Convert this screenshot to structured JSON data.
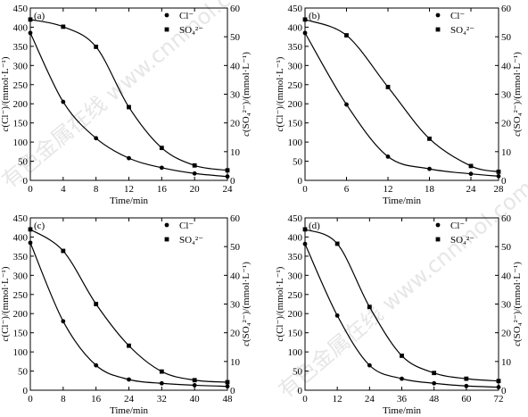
{
  "watermark_text": "有色金属在线 www.cnnmol.com",
  "chart_data": [
    {
      "type": "line",
      "panel_label": "(a)",
      "xlabel": "Time/min",
      "ylabel_left": "c(Cl⁻)/(mmol·L⁻¹)",
      "ylabel_right": "c(SO₄²⁻)/(mmol·L⁻¹)",
      "x_ticks": [
        0,
        4,
        8,
        12,
        16,
        20,
        24
      ],
      "xlim": [
        0,
        24
      ],
      "ylim_left": [
        0,
        450
      ],
      "ylim_right": [
        0,
        60
      ],
      "y_ticks_left": [
        0,
        50,
        100,
        150,
        200,
        250,
        300,
        350,
        400,
        450
      ],
      "y_ticks_right": [
        0,
        10,
        20,
        30,
        40,
        50,
        60
      ],
      "grid": false,
      "legend_position": "top-right",
      "series": [
        {
          "name": "Cl⁻",
          "axis": "left",
          "marker": "circle",
          "x": [
            0,
            4,
            8,
            12,
            16,
            20,
            24
          ],
          "y": [
            385,
            205,
            110,
            58,
            33,
            18,
            10
          ]
        },
        {
          "name": "SO₄²⁻",
          "axis": "right",
          "marker": "square",
          "x": [
            0,
            4,
            8,
            12,
            16,
            20,
            24
          ],
          "y": [
            56,
            53.5,
            46.5,
            25.5,
            11.3,
            5.2,
            3.5
          ]
        }
      ]
    },
    {
      "type": "line",
      "panel_label": "(b)",
      "xlabel": "Time/min",
      "ylabel_left": "c(Cl⁻)/(mmol·L⁻¹)",
      "ylabel_right": "c(SO₄²⁻)/(mmol·L⁻¹)",
      "x_ticks": [
        0,
        6,
        12,
        18,
        24,
        28
      ],
      "xlim": [
        0,
        28
      ],
      "ylim_left": [
        0,
        450
      ],
      "ylim_right": [
        0,
        60
      ],
      "y_ticks_left": [
        0,
        50,
        100,
        150,
        200,
        250,
        300,
        350,
        400,
        450
      ],
      "y_ticks_right": [
        0,
        10,
        20,
        30,
        40,
        50,
        60
      ],
      "grid": false,
      "legend_position": "top-right",
      "series": [
        {
          "name": "Cl⁻",
          "axis": "left",
          "marker": "circle",
          "x": [
            0,
            6,
            12,
            18,
            24,
            28
          ],
          "y": [
            385,
            198,
            62,
            30,
            17,
            11
          ]
        },
        {
          "name": "SO₄²⁻",
          "axis": "right",
          "marker": "square",
          "x": [
            0,
            6,
            12,
            18,
            24,
            28
          ],
          "y": [
            56,
            50.5,
            32.5,
            14.5,
            5,
            3
          ]
        }
      ]
    },
    {
      "type": "line",
      "panel_label": "(c)",
      "xlabel": "Time/min",
      "ylabel_left": "c(Cl⁻)/(mmol·L⁻¹)",
      "ylabel_right": "c(SO₄²⁻)/(mmol·L⁻¹)",
      "x_ticks": [
        0,
        8,
        16,
        24,
        32,
        40,
        48
      ],
      "xlim": [
        0,
        48
      ],
      "ylim_left": [
        0,
        450
      ],
      "ylim_right": [
        0,
        60
      ],
      "y_ticks_left": [
        0,
        50,
        100,
        150,
        200,
        250,
        300,
        350,
        400,
        450
      ],
      "y_ticks_right": [
        0,
        10,
        20,
        30,
        40,
        50,
        60
      ],
      "grid": false,
      "legend_position": "top-right",
      "series": [
        {
          "name": "Cl⁻",
          "axis": "left",
          "marker": "circle",
          "x": [
            0,
            8,
            16,
            24,
            32,
            40,
            48
          ],
          "y": [
            385,
            180,
            65,
            28,
            18,
            13,
            10
          ]
        },
        {
          "name": "SO₄²⁻",
          "axis": "right",
          "marker": "square",
          "x": [
            0,
            8,
            16,
            24,
            32,
            40,
            48
          ],
          "y": [
            56,
            48.5,
            30,
            15.5,
            6.5,
            3.5,
            2.8
          ]
        }
      ]
    },
    {
      "type": "line",
      "panel_label": "(d)",
      "xlabel": "Time/min",
      "ylabel_left": "c(Cl⁻)/(mmol·L⁻¹)",
      "ylabel_right": "c(SO₄²⁻)/(mmol·L⁻¹)",
      "x_ticks": [
        0,
        12,
        24,
        36,
        48,
        60,
        72
      ],
      "xlim": [
        0,
        72
      ],
      "ylim_left": [
        0,
        450
      ],
      "ylim_right": [
        0,
        60
      ],
      "y_ticks_left": [
        0,
        50,
        100,
        150,
        200,
        250,
        300,
        350,
        400,
        450
      ],
      "y_ticks_right": [
        0,
        10,
        20,
        30,
        40,
        50,
        60
      ],
      "grid": false,
      "legend_position": "top-right",
      "series": [
        {
          "name": "Cl⁻",
          "axis": "left",
          "marker": "circle",
          "x": [
            0,
            12,
            24,
            36,
            48,
            60,
            72
          ],
          "y": [
            382,
            195,
            65,
            30,
            18,
            11,
            8
          ]
        },
        {
          "name": "SO₄²⁻",
          "axis": "right",
          "marker": "square",
          "x": [
            0,
            12,
            24,
            36,
            48,
            60,
            72
          ],
          "y": [
            56,
            51,
            29,
            12,
            6,
            4,
            3.2
          ]
        }
      ]
    }
  ]
}
